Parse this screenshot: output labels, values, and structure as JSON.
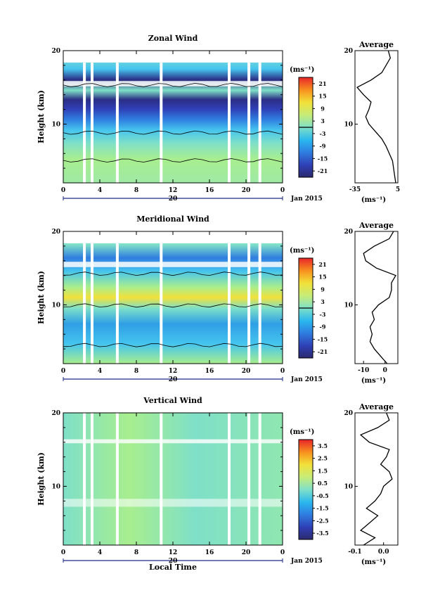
{
  "chart_data": [
    {
      "type": "heatmap",
      "title": "Zonal Wind",
      "ylabel": "Height (km)",
      "y_ticks": [
        "10",
        "20"
      ],
      "x_ticks": [
        "0",
        "4",
        "8",
        "12",
        "16",
        "20",
        "0"
      ],
      "sub_tick": "20",
      "date_label": "Jan 2015",
      "ylim": [
        2,
        20
      ],
      "xlim": [
        0,
        24
      ],
      "colorbar": {
        "unit": "(ms⁻¹)",
        "ticks": [
          "21",
          "15",
          "9",
          "3",
          "-3",
          "-9",
          "-15",
          "-21"
        ]
      },
      "profile": {
        "title": "Average",
        "x_ticks": [
          "-35",
          "5"
        ],
        "xlim": [
          -35,
          5
        ],
        "unit": "(ms⁻¹)",
        "y_ticks": [
          "10",
          "20"
        ],
        "heights": [
          2,
          3,
          4,
          5,
          6,
          7,
          8,
          9,
          10,
          11,
          12,
          13,
          14,
          15,
          16,
          17,
          18,
          19,
          20
        ],
        "values": [
          3,
          2,
          1,
          0,
          -3,
          -6,
          -10,
          -16,
          -22,
          -25,
          -22,
          -20,
          -27,
          -33,
          -20,
          -10,
          -6,
          -2,
          -4
        ]
      }
    },
    {
      "type": "heatmap",
      "title": "Meridional Wind",
      "ylabel": "Height (km)",
      "y_ticks": [
        "10",
        "20"
      ],
      "x_ticks": [
        "0",
        "4",
        "8",
        "12",
        "16",
        "20",
        "0"
      ],
      "sub_tick": "20",
      "date_label": "Jan 2015",
      "ylim": [
        2,
        20
      ],
      "xlim": [
        0,
        24
      ],
      "colorbar": {
        "unit": "(ms⁻¹)",
        "ticks": [
          "21",
          "15",
          "9",
          "3",
          "-3",
          "-9",
          "-15",
          "-21"
        ]
      },
      "profile": {
        "title": "Average",
        "x_ticks": [
          "-10",
          "0"
        ],
        "xlim": [
          -14,
          6
        ],
        "unit": "(ms⁻¹)",
        "y_ticks": [
          "10",
          "20"
        ],
        "heights": [
          2,
          3,
          4,
          5,
          6,
          7,
          8,
          9,
          10,
          11,
          12,
          13,
          14,
          15,
          16,
          17,
          18,
          19,
          20
        ],
        "values": [
          1,
          -2,
          -5,
          -7,
          -6,
          -7,
          -5,
          -6,
          -3,
          2,
          3,
          3,
          5,
          -4,
          -9,
          -10,
          -5,
          2,
          4
        ]
      }
    },
    {
      "type": "heatmap",
      "title": "Vertical Wind",
      "ylabel": "Height (km)",
      "y_ticks": [
        "10",
        "20"
      ],
      "x_ticks": [
        "0",
        "4",
        "8",
        "12",
        "16",
        "20",
        "0"
      ],
      "sub_tick": "20",
      "date_label": "Jan 2015",
      "xlabel": "Local Time",
      "ylim": [
        2,
        20
      ],
      "xlim": [
        0,
        24
      ],
      "colorbar": {
        "unit": "(ms⁻¹)",
        "ticks": [
          "3.5",
          "2.5",
          "1.5",
          "0.5",
          "-0.5",
          "-1.5",
          "-2.5",
          "-3.5"
        ]
      },
      "profile": {
        "title": "Average",
        "x_ticks": [
          "-0.1",
          "0.0"
        ],
        "xlim": [
          -0.1,
          0.05
        ],
        "unit": "(ms⁻¹)",
        "y_ticks": [
          "10",
          "20"
        ],
        "heights": [
          2,
          3,
          4,
          5,
          6,
          7,
          8,
          9,
          10,
          11,
          12,
          13,
          14,
          15,
          16,
          17,
          18,
          19,
          20
        ],
        "values": [
          -0.07,
          -0.03,
          -0.08,
          -0.05,
          -0.02,
          -0.06,
          -0.03,
          -0.01,
          0.0,
          0.03,
          0.02,
          -0.01,
          0.01,
          0.02,
          -0.05,
          -0.08,
          -0.02,
          0.02,
          0.01
        ]
      }
    }
  ]
}
